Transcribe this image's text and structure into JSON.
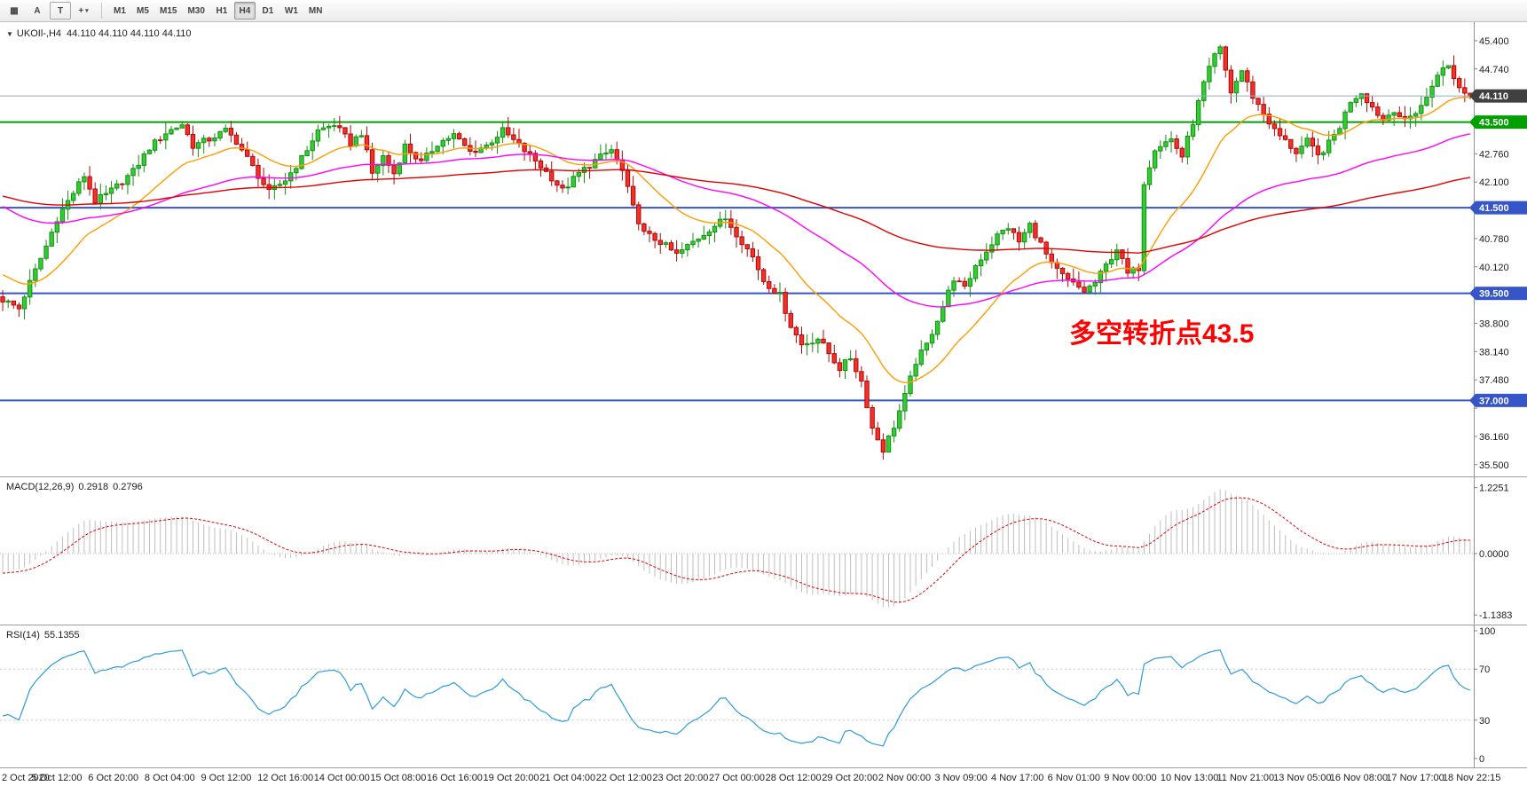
{
  "toolbar": {
    "tools": [
      {
        "name": "chart-window",
        "glyph": "▦"
      },
      {
        "name": "annotation-a",
        "glyph": "A"
      },
      {
        "name": "text-tool",
        "glyph": "T",
        "boxed": true
      },
      {
        "name": "crosshair-tool",
        "glyph": "+",
        "caret": "▾"
      }
    ],
    "timeframes": [
      {
        "label": "M1"
      },
      {
        "label": "M5"
      },
      {
        "label": "M15"
      },
      {
        "label": "M30"
      },
      {
        "label": "H1"
      },
      {
        "label": "H4",
        "active": true
      },
      {
        "label": "D1"
      },
      {
        "label": "W1"
      },
      {
        "label": "MN"
      }
    ]
  },
  "chart": {
    "title": "UKOIl-,H4",
    "ohlc": "44.110 44.110 44.110 44.110",
    "annotation": {
      "text": "多空转折点43.5",
      "color": "#FF0000"
    }
  },
  "chart_data": {
    "type": "candlestick",
    "symbol": "UKOIl-",
    "timeframe": "H4",
    "bars": 271,
    "close_noise": 0.16,
    "wick_noise": 0.26,
    "price_anchors": [
      [
        0,
        39.35
      ],
      [
        3,
        39.15
      ],
      [
        5,
        39.75
      ],
      [
        8,
        40.6
      ],
      [
        10,
        41.25
      ],
      [
        13,
        41.85
      ],
      [
        15,
        42.25
      ],
      [
        17,
        41.65
      ],
      [
        19,
        41.8
      ],
      [
        21,
        42.0
      ],
      [
        24,
        42.35
      ],
      [
        27,
        42.9
      ],
      [
        30,
        43.25
      ],
      [
        33,
        43.45
      ],
      [
        35,
        42.95
      ],
      [
        38,
        43.1
      ],
      [
        41,
        43.3
      ],
      [
        43,
        43.05
      ],
      [
        46,
        42.45
      ],
      [
        49,
        41.85
      ],
      [
        52,
        42.15
      ],
      [
        55,
        42.65
      ],
      [
        58,
        43.3
      ],
      [
        61,
        43.45
      ],
      [
        64,
        43.0
      ],
      [
        66,
        43.25
      ],
      [
        68,
        42.3
      ],
      [
        70,
        42.7
      ],
      [
        72,
        42.3
      ],
      [
        74,
        42.95
      ],
      [
        77,
        42.55
      ],
      [
        80,
        43.0
      ],
      [
        83,
        43.2
      ],
      [
        86,
        42.8
      ],
      [
        89,
        42.95
      ],
      [
        92,
        43.3
      ],
      [
        95,
        42.95
      ],
      [
        98,
        42.6
      ],
      [
        101,
        42.2
      ],
      [
        103,
        41.9
      ],
      [
        106,
        42.3
      ],
      [
        109,
        42.6
      ],
      [
        112,
        42.85
      ],
      [
        114,
        42.35
      ],
      [
        116,
        41.5
      ],
      [
        118,
        40.9
      ],
      [
        121,
        40.7
      ],
      [
        124,
        40.4
      ],
      [
        127,
        40.7
      ],
      [
        130,
        41.0
      ],
      [
        133,
        41.25
      ],
      [
        135,
        40.9
      ],
      [
        138,
        40.35
      ],
      [
        140,
        39.8
      ],
      [
        143,
        39.45
      ],
      [
        145,
        38.75
      ],
      [
        147,
        38.3
      ],
      [
        150,
        38.45
      ],
      [
        152,
        38.1
      ],
      [
        154,
        37.75
      ],
      [
        156,
        38.0
      ],
      [
        158,
        37.45
      ],
      [
        160,
        36.35
      ],
      [
        162,
        35.85
      ],
      [
        164,
        36.4
      ],
      [
        166,
        37.1
      ],
      [
        168,
        37.9
      ],
      [
        170,
        38.3
      ],
      [
        173,
        39.2
      ],
      [
        175,
        39.85
      ],
      [
        177,
        39.6
      ],
      [
        179,
        40.15
      ],
      [
        181,
        40.5
      ],
      [
        183,
        40.85
      ],
      [
        185,
        41.05
      ],
      [
        187,
        40.7
      ],
      [
        189,
        41.1
      ],
      [
        191,
        40.65
      ],
      [
        193,
        40.15
      ],
      [
        196,
        39.8
      ],
      [
        199,
        39.55
      ],
      [
        201,
        39.75
      ],
      [
        203,
        40.15
      ],
      [
        205,
        40.55
      ],
      [
        207,
        39.95
      ],
      [
        209,
        40.1
      ],
      [
        210,
        42.1
      ],
      [
        212,
        42.9
      ],
      [
        215,
        43.1
      ],
      [
        217,
        42.7
      ],
      [
        219,
        43.5
      ],
      [
        221,
        44.4
      ],
      [
        223,
        45.05
      ],
      [
        224,
        45.2
      ],
      [
        226,
        44.2
      ],
      [
        228,
        44.7
      ],
      [
        230,
        44.1
      ],
      [
        232,
        43.7
      ],
      [
        234,
        43.3
      ],
      [
        236,
        43.05
      ],
      [
        238,
        42.8
      ],
      [
        240,
        43.05
      ],
      [
        242,
        42.7
      ],
      [
        244,
        43.0
      ],
      [
        246,
        43.4
      ],
      [
        248,
        44.0
      ],
      [
        250,
        44.2
      ],
      [
        252,
        43.85
      ],
      [
        254,
        43.55
      ],
      [
        256,
        43.8
      ],
      [
        258,
        43.5
      ],
      [
        260,
        43.75
      ],
      [
        262,
        44.05
      ],
      [
        264,
        44.65
      ],
      [
        266,
        44.8
      ],
      [
        268,
        44.3
      ],
      [
        270,
        44.11
      ]
    ],
    "candle_colors": {
      "up": {
        "fill": "#33CC33",
        "border": "#159015"
      },
      "down": {
        "fill": "#F53028",
        "border": "#AD0A0A"
      }
    },
    "price_axis": {
      "ylim": [
        35.35,
        45.75
      ],
      "ticks": [
        "45.400",
        "44.740",
        "44.080",
        "43.420",
        "42.760",
        "42.100",
        "41.440",
        "40.780",
        "40.120",
        "39.460",
        "38.800",
        "38.140",
        "37.480",
        "36.820",
        "36.160",
        "35.500"
      ]
    },
    "bid_line": {
      "price": 44.11,
      "label": "44.110",
      "line_color": "#8FAECB",
      "badge_bg": "#404040"
    },
    "horizontal_lines": [
      {
        "price": 43.5,
        "label": "43.500",
        "color": "#00A000",
        "badge_bg": "#00A000",
        "width": 2
      },
      {
        "price": 41.5,
        "label": "41.500",
        "color": "#3555C8",
        "badge_bg": "#3555C8",
        "width": 2
      },
      {
        "price": 39.5,
        "label": "39.500",
        "color": "#3555C8",
        "badge_bg": "#3555C8",
        "width": 2
      },
      {
        "price": 37.0,
        "label": "37.000",
        "color": "#3555C8",
        "badge_bg": "#3555C8",
        "width": 2
      }
    ],
    "moving_averages": [
      {
        "name": "ma-fast-orange",
        "period": 20,
        "seed": 40.0,
        "color": "#FF9C00"
      },
      {
        "name": "ma-mid-magenta",
        "period": 65,
        "seed": 41.6,
        "color": "#FF00FF"
      },
      {
        "name": "ma-slow-red",
        "period": 160,
        "seed": 41.8,
        "color": "#E00000"
      }
    ],
    "indicators": {
      "macd": {
        "label": "MACD(12,26,9)",
        "main_value": "0.2918",
        "signal_value": "0.2796",
        "fast": 12,
        "slow": 26,
        "signal": 9,
        "seed_offsets": [
          -0.1,
          0.3
        ],
        "ylim": [
          -1.25,
          1.35
        ],
        "axis_ticks": [
          "1.2251",
          "0.0000",
          "-1.1383"
        ],
        "hist_color": "#BEBEBE",
        "signal_color": "#E00000",
        "zero_color": "#BBBBBB"
      },
      "rsi": {
        "label": "RSI(14)",
        "value": "55.1355",
        "period": 14,
        "seed": [
          0.04,
          0.08
        ],
        "levels": [
          "100",
          "70",
          "30",
          "0"
        ],
        "dashed_levels": [
          70,
          30
        ],
        "color": "#2E9BDB",
        "ylim": [
          0,
          100
        ]
      }
    },
    "time_labels": [
      "2 Oct 2020",
      "5 Oct 12:00",
      "6 Oct 20:00",
      "8 Oct 04:00",
      "9 Oct 12:00",
      "12 Oct 16:00",
      "14 Oct 00:00",
      "15 Oct 08:00",
      "16 Oct 16:00",
      "19 Oct 20:00",
      "21 Oct 04:00",
      "22 Oct 12:00",
      "23 Oct 20:00",
      "27 Oct 00:00",
      "28 Oct 12:00",
      "29 Oct 20:00",
      "2 Nov 00:00",
      "3 Nov 09:00",
      "4 Nov 17:00",
      "6 Nov 01:00",
      "9 Nov 00:00",
      "10 Nov 13:00",
      "11 Nov 21:00",
      "13 Nov 05:00",
      "16 Nov 08:00",
      "17 Nov 17:00",
      "18 Nov 22:15"
    ]
  }
}
